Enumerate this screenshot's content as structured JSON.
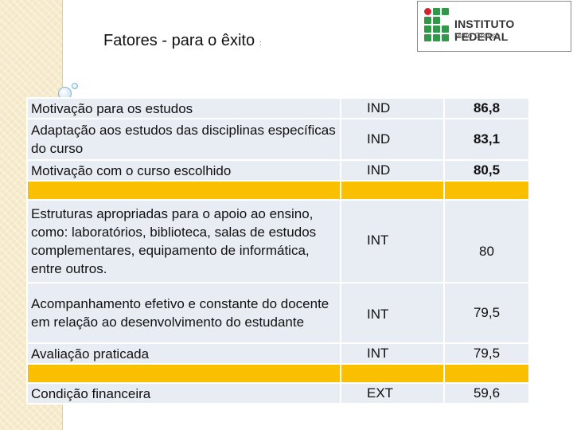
{
  "slide": {
    "title": "Fatores - para o êxito",
    "title_suffix": ":"
  },
  "logo": {
    "line1": "INSTITUTO FEDERAL",
    "line2": "Mato Grosso",
    "colors": {
      "red": "#d4202b",
      "green": "#2e9a48"
    }
  },
  "table": {
    "rows": [
      {
        "factor": "Motivação para os estudos",
        "type": "IND",
        "value": "86,8"
      },
      {
        "factor": "Adaptação aos estudos das disciplinas específicas do curso",
        "type": "IND",
        "value": "83,1"
      },
      {
        "factor": "Motivação com o curso escolhido",
        "type": "IND",
        "value": "80,5"
      },
      {
        "factor": "Estruturas apropriadas para o apoio ao ensino, como: laboratórios, biblioteca, salas de estudos complementares, equipamento de informática, entre outros.",
        "type": "INT",
        "value": "80"
      },
      {
        "factor": "Acompanhamento efetivo e constante do docente em relação ao desenvolvimento do estudante",
        "type": "INT",
        "value": "79,5"
      },
      {
        "factor": " Avaliação praticada",
        "type": "INT",
        "value": "79,5"
      },
      {
        "factor": "Condição financeira",
        "type": "EXT",
        "value": "59,6"
      }
    ],
    "colors": {
      "cell": "#e8ecf3",
      "separator": "#fac000"
    }
  }
}
